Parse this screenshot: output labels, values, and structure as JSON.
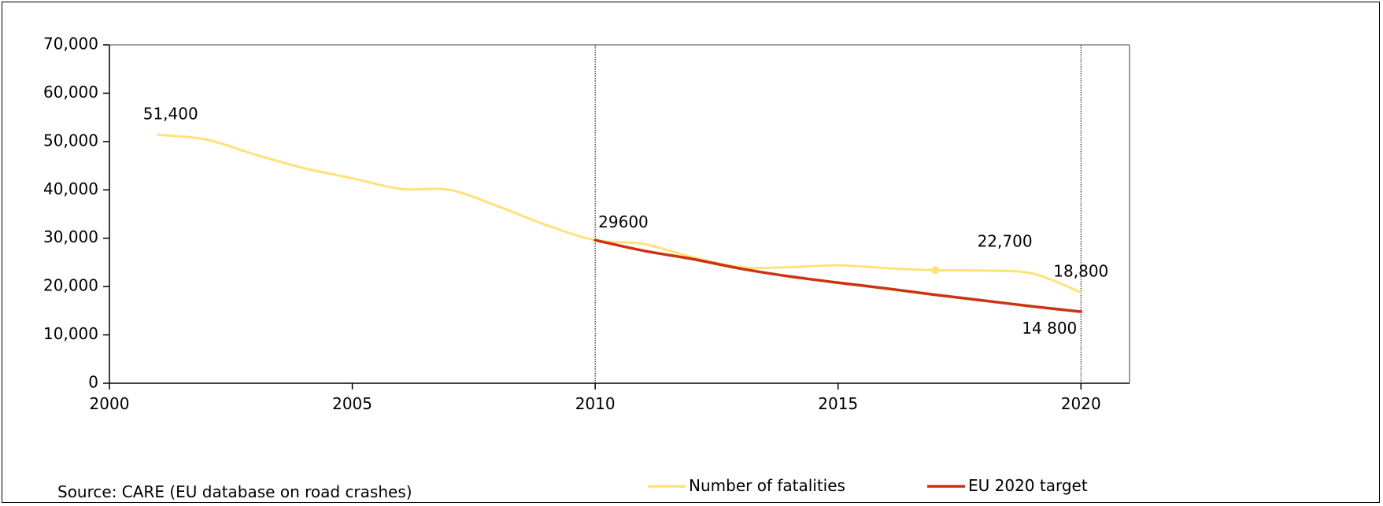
{
  "chart_data": {
    "type": "line",
    "xlim": [
      2000,
      2021
    ],
    "ylim": [
      0,
      70000
    ],
    "x_ticks": [
      2000,
      2005,
      2010,
      2015,
      2020
    ],
    "x_tick_labels": [
      "2000",
      "2005",
      "2010",
      "2015",
      "2020"
    ],
    "y_ticks": [
      0,
      10000,
      20000,
      30000,
      40000,
      50000,
      60000,
      70000
    ],
    "y_tick_labels": [
      "0",
      "10,000",
      "20,000",
      "30,000",
      "40,000",
      "50,000",
      "60,000",
      "70,000"
    ],
    "grid": false,
    "vertical_reference_lines": [
      2010,
      2020
    ],
    "legend_position": "bottom-right",
    "series": [
      {
        "name": "Number of fatalities",
        "color": "#FFE27A",
        "x": [
          2001,
          2002,
          2003,
          2004,
          2005,
          2006,
          2007,
          2008,
          2009,
          2010,
          2011,
          2012,
          2013,
          2014,
          2015,
          2016,
          2017,
          2018,
          2019,
          2020
        ],
        "y": [
          51400,
          50400,
          47300,
          44500,
          42400,
          40200,
          40000,
          36600,
          32700,
          29600,
          28800,
          26100,
          24000,
          24000,
          24400,
          23800,
          23400,
          23300,
          22700,
          18800
        ],
        "highlight_x": 2017
      },
      {
        "name": "EU 2020 target",
        "color": "#CC3311",
        "x": [
          2010,
          2011,
          2012,
          2013,
          2014,
          2015,
          2016,
          2017,
          2018,
          2019,
          2020
        ],
        "y": [
          29600,
          27400,
          25700,
          23700,
          22100,
          20800,
          19600,
          18300,
          17100,
          15900,
          14800
        ]
      }
    ],
    "annotations": [
      {
        "text": "51,400",
        "x": 2001,
        "y": 51400,
        "anchor": "above"
      },
      {
        "text": "29600",
        "x": 2010,
        "y": 29600,
        "anchor": "above-right"
      },
      {
        "text": "22,700",
        "x": 2019,
        "y": 22700,
        "anchor": "above"
      },
      {
        "text": "18,800",
        "x": 2020,
        "y": 18800,
        "anchor": "above"
      },
      {
        "text": "14 800",
        "x": 2020,
        "y": 14800,
        "anchor": "below"
      }
    ],
    "source": "Source: CARE (EU database on road crashes)"
  }
}
